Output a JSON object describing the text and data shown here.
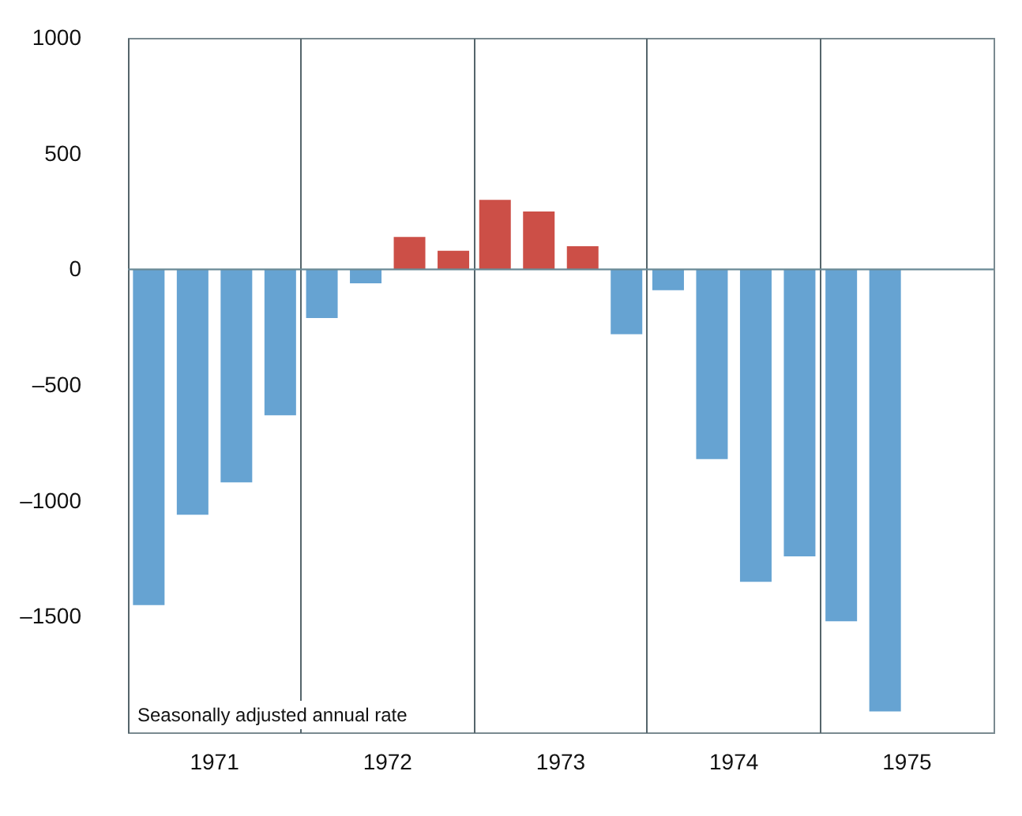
{
  "chart_data": {
    "type": "bar",
    "categories": [
      "1971",
      "1972",
      "1973",
      "1974",
      "1975"
    ],
    "series": [
      {
        "colors": [
          "#66a3d2",
          "#66a3d2",
          "#cc4f47",
          "#66a3d2",
          "#66a3d2"
        ],
        "values": [
          -1450,
          -210,
          300,
          -90,
          -1520
        ]
      },
      {
        "colors": [
          "#66a3d2",
          "#66a3d2",
          "#cc4f47",
          "#66a3d2",
          "#66a3d2"
        ],
        "values": [
          -1060,
          -60,
          250,
          -820,
          -1910
        ]
      },
      {
        "colors": [
          "#66a3d2",
          "#cc4f47",
          "#cc4f47",
          "#66a3d2",
          "#66a3d2"
        ],
        "values": [
          -920,
          140,
          100,
          -1350,
          null
        ]
      },
      {
        "colors": [
          "#66a3d2",
          "#cc4f47",
          "#66a3d2",
          "#66a3d2",
          "#66a3d2"
        ],
        "values": [
          -630,
          80,
          -280,
          -1240,
          null
        ]
      }
    ],
    "ylim": [
      -2000,
      1000
    ],
    "yticks": [
      1000,
      500,
      0,
      {
        "value": -500,
        "label": "–500"
      },
      {
        "value": -1000,
        "label": "–1000"
      },
      {
        "value": -1500,
        "label": "–1500"
      }
    ],
    "grid": "x",
    "ref_lines": [
      {
        "axis": "y",
        "value": 0,
        "color": "#6a8a96"
      }
    ],
    "annotations": [
      "Seasonally adjusted annual rate"
    ]
  }
}
